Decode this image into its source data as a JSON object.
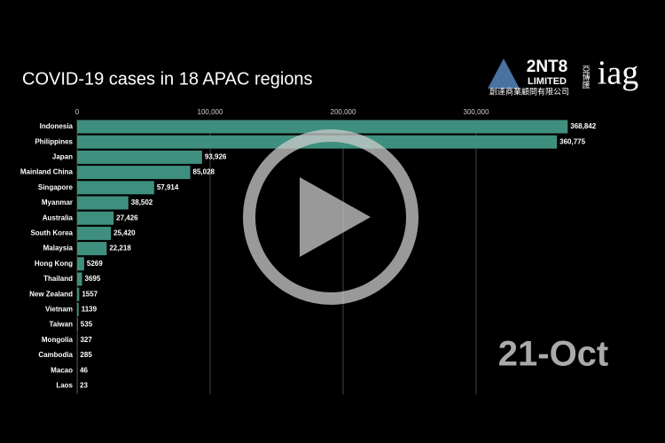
{
  "chart_data": {
    "type": "bar",
    "orientation": "horizontal",
    "title": "COVID-19 cases in 18 APAC regions",
    "date_label": "21-Oct",
    "logo": {
      "name": "2NT8",
      "sub": "LIMITED",
      "chinese": "創達商業顧問有限公司",
      "brand": "iag",
      "brand_chinese": "亞博匯"
    },
    "categories": [
      "Indonesia",
      "Philippines",
      "Japan",
      "Mainland China",
      "Singapore",
      "Myanmar",
      "Australia",
      "South Korea",
      "Malaysia",
      "Hong Kong",
      "Thailand",
      "New Zealand",
      "Vietnam",
      "Taiwan",
      "Mongolia",
      "Cambodia",
      "Macao",
      "Laos"
    ],
    "values": [
      368842,
      360775,
      93926,
      85028,
      57914,
      38502,
      27426,
      25420,
      22218,
      5269,
      3695,
      1557,
      1139,
      535,
      327,
      285,
      46,
      23
    ],
    "value_labels": [
      "368,842",
      "360,775",
      "93,926",
      "85,028",
      "57,914",
      "38,502",
      "27,426",
      "25,420",
      "22,218",
      "5269",
      "3695",
      "1557",
      "1139",
      "535",
      "327",
      "285",
      "46",
      "23"
    ],
    "color": "#3f8f7f",
    "xlim": [
      0,
      440000
    ],
    "xticks": [
      0,
      {
        "value": 100000,
        "label": "100,000"
      },
      {
        "value": 200000,
        "label": "200,000"
      },
      {
        "value": 300000,
        "label": "300,000"
      }
    ],
    "grid": true
  }
}
